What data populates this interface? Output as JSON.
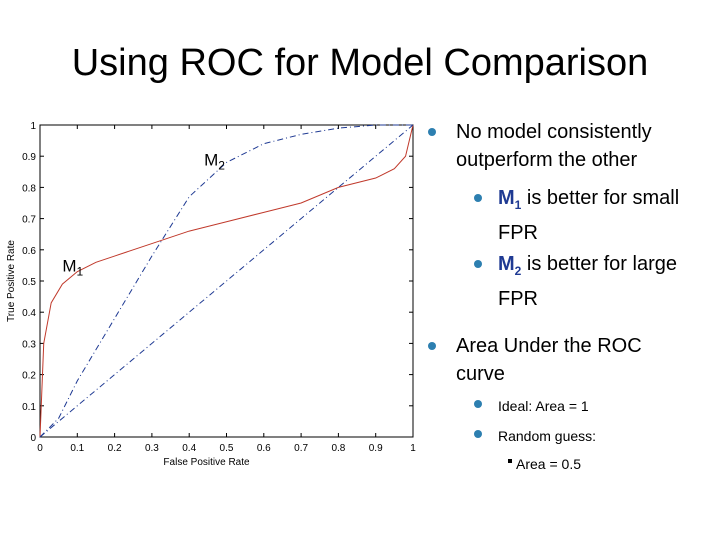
{
  "title": "Using ROC for Model Comparison",
  "bullets": {
    "b1": "No model consistently outperform the other",
    "b1a_model": "M",
    "b1a_sub": "1",
    "b1a_text": " is better for small FPR",
    "b1b_model": "M",
    "b1b_sub": "2",
    "b1b_text": " is better for large FPR",
    "b2": "Area Under the ROC curve",
    "b2a": "Ideal:  Area = 1",
    "b2b": "Random guess:",
    "b2b_sub": "Area = 0.5"
  },
  "chart_data": {
    "type": "line",
    "title": "",
    "xlabel": "False Positive Rate",
    "ylabel": "True Positive Rate",
    "xlim": [
      0,
      1
    ],
    "ylim": [
      0,
      1
    ],
    "xticks": [
      "0",
      "0.1",
      "0.2",
      "0.3",
      "0.4",
      "0.5",
      "0.6",
      "0.7",
      "0.8",
      "0.9",
      "1"
    ],
    "yticks": [
      "0",
      "0.1",
      "0.2",
      "0.3",
      "0.4",
      "0.5",
      "0.6",
      "0.7",
      "0.8",
      "0.9",
      "1"
    ],
    "annotations": [
      {
        "name": "M",
        "sub": "2",
        "x": 0.44,
        "y": 0.87
      },
      {
        "name": "M",
        "sub": "1",
        "x": 0.06,
        "y": 0.53
      }
    ],
    "series": [
      {
        "name": "M1",
        "color": "#c0392b",
        "style": "solid",
        "x": [
          0,
          0.01,
          0.03,
          0.06,
          0.1,
          0.15,
          0.2,
          0.3,
          0.4,
          0.5,
          0.6,
          0.7,
          0.8,
          0.9,
          0.95,
          0.98,
          1.0
        ],
        "y": [
          0,
          0.3,
          0.43,
          0.49,
          0.53,
          0.56,
          0.58,
          0.62,
          0.66,
          0.69,
          0.72,
          0.75,
          0.8,
          0.83,
          0.86,
          0.9,
          1.0
        ]
      },
      {
        "name": "M2",
        "color": "#1f3a93",
        "style": "dashdot",
        "x": [
          0,
          0.05,
          0.1,
          0.2,
          0.3,
          0.4,
          0.5,
          0.6,
          0.7,
          0.8,
          0.9,
          1.0
        ],
        "y": [
          0,
          0.06,
          0.18,
          0.38,
          0.58,
          0.77,
          0.88,
          0.94,
          0.97,
          0.99,
          1.0,
          1.0
        ]
      },
      {
        "name": "Random",
        "color": "#1f3a93",
        "style": "dashdot",
        "x": [
          0,
          1
        ],
        "y": [
          0,
          1
        ]
      }
    ]
  }
}
